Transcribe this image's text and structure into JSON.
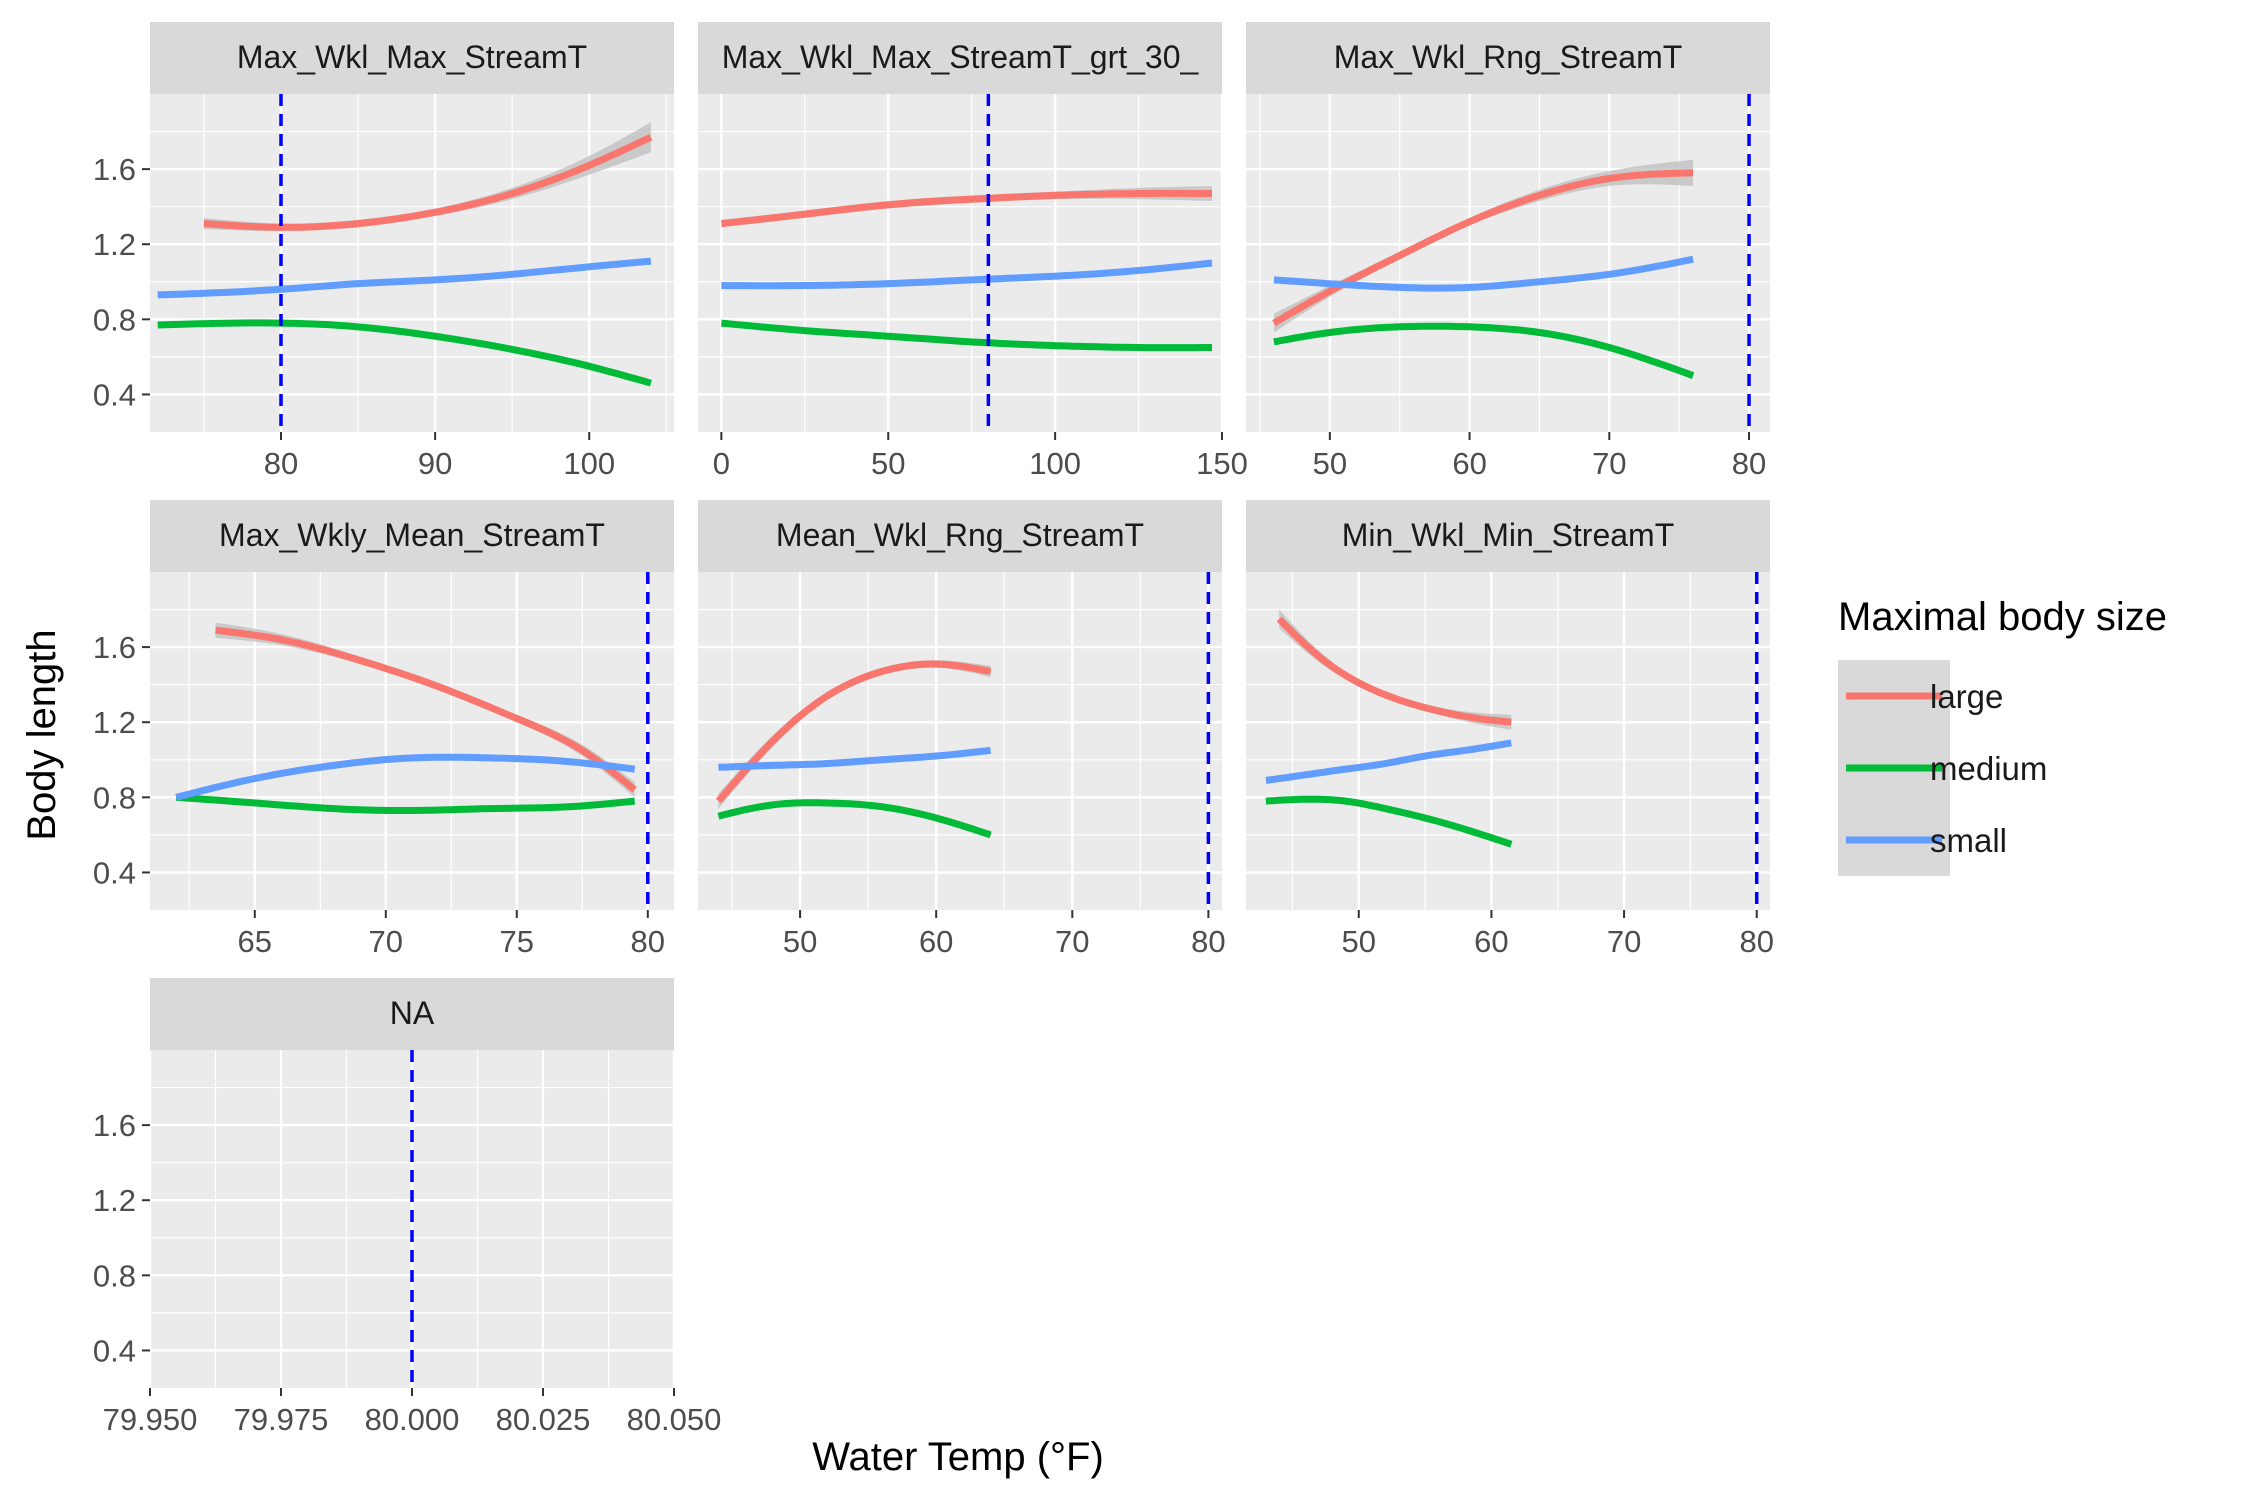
{
  "figure": {
    "xlabel": "Water Temp (°F)",
    "ylabel": "Body length"
  },
  "legend": {
    "title": "Maximal body size",
    "position": "right",
    "items": [
      {
        "label": "large",
        "color": "#F8766D"
      },
      {
        "label": "medium",
        "color": "#00BA38"
      },
      {
        "label": "small",
        "color": "#619CFF"
      }
    ]
  },
  "colors": {
    "panel_bg": "#EBEBEB",
    "strip_bg": "#D9D9D9",
    "grid": "#FFFFFF",
    "reference_line": "#0000FF",
    "ribbon": "#BDBDBD"
  },
  "chart_data": {
    "type": "line",
    "facet_layout": "3 columns x 3 rows",
    "shared_ylim": [
      0.2,
      2.0
    ],
    "y_ticks": [
      0.4,
      0.8,
      1.2,
      1.6
    ],
    "y_tick_labels": [
      "0.4",
      "0.8",
      "1.2",
      "1.6"
    ],
    "reference_line_x": 80,
    "reference_line_style": "dashed",
    "smoother_ribbon": true,
    "panels": [
      {
        "title": "Max_Wkl_Max_StreamT",
        "xlim": [
          71.5,
          105.5
        ],
        "x_ticks": [
          80,
          90,
          100
        ],
        "x_tick_labels": [
          "80",
          "90",
          "100"
        ],
        "series": [
          {
            "name": "large",
            "x": [
              75,
              80,
              85,
              90,
              95,
              100,
              104
            ],
            "y": [
              1.31,
              1.29,
              1.31,
              1.37,
              1.47,
              1.62,
              1.77
            ],
            "se": [
              0.03,
              0.02,
              0.02,
              0.02,
              0.03,
              0.05,
              0.08
            ]
          },
          {
            "name": "medium",
            "x": [
              72,
              80,
              85,
              90,
              95,
              100,
              104
            ],
            "y": [
              0.77,
              0.78,
              0.76,
              0.71,
              0.64,
              0.55,
              0.46
            ]
          },
          {
            "name": "small",
            "x": [
              72,
              80,
              85,
              90,
              95,
              100,
              104
            ],
            "y": [
              0.93,
              0.96,
              0.99,
              1.01,
              1.04,
              1.08,
              1.11
            ]
          }
        ]
      },
      {
        "title": "Max_Wkl_Max_StreamT_grt_30_",
        "xlim": [
          -7,
          150
        ],
        "x_ticks": [
          0,
          50,
          100,
          150
        ],
        "x_tick_labels": [
          "0",
          "50",
          "100",
          "150"
        ],
        "series": [
          {
            "name": "large",
            "x": [
              0,
              25,
              50,
              75,
              100,
              125,
              147
            ],
            "y": [
              1.31,
              1.36,
              1.41,
              1.44,
              1.46,
              1.47,
              1.47
            ],
            "se": [
              0.02,
              0.02,
              0.02,
              0.02,
              0.02,
              0.03,
              0.04
            ]
          },
          {
            "name": "medium",
            "x": [
              0,
              25,
              50,
              75,
              100,
              125,
              147
            ],
            "y": [
              0.78,
              0.74,
              0.71,
              0.68,
              0.66,
              0.65,
              0.65
            ]
          },
          {
            "name": "small",
            "x": [
              0,
              25,
              50,
              75,
              100,
              125,
              147
            ],
            "y": [
              0.98,
              0.98,
              0.99,
              1.01,
              1.03,
              1.06,
              1.1
            ]
          }
        ]
      },
      {
        "title": "Max_Wkl_Rng_StreamT",
        "xlim": [
          44,
          81.5
        ],
        "x_ticks": [
          50,
          60,
          70,
          80
        ],
        "x_tick_labels": [
          "50",
          "60",
          "70",
          "80"
        ],
        "series": [
          {
            "name": "large",
            "x": [
              46,
              50,
              55,
              60,
              65,
              70,
              76
            ],
            "y": [
              0.78,
              0.95,
              1.14,
              1.32,
              1.46,
              1.55,
              1.58
            ],
            "se": [
              0.05,
              0.03,
              0.02,
              0.02,
              0.03,
              0.04,
              0.07
            ]
          },
          {
            "name": "medium",
            "x": [
              46,
              50,
              55,
              60,
              65,
              70,
              76
            ],
            "y": [
              0.68,
              0.73,
              0.76,
              0.76,
              0.73,
              0.65,
              0.5
            ]
          },
          {
            "name": "small",
            "x": [
              46,
              50,
              55,
              60,
              65,
              70,
              76
            ],
            "y": [
              1.01,
              0.99,
              0.97,
              0.97,
              1.0,
              1.04,
              1.12
            ]
          }
        ]
      },
      {
        "title": "Max_Wkly_Mean_StreamT",
        "xlim": [
          61,
          81
        ],
        "x_ticks": [
          65,
          70,
          75,
          80
        ],
        "x_tick_labels": [
          "65",
          "70",
          "75",
          "80"
        ],
        "series": [
          {
            "name": "large",
            "x": [
              63.5,
              66,
              69,
              72,
              75,
              77.5,
              79.5
            ],
            "y": [
              1.69,
              1.64,
              1.53,
              1.39,
              1.22,
              1.05,
              0.84
            ],
            "se": [
              0.04,
              0.03,
              0.02,
              0.02,
              0.02,
              0.03,
              0.04
            ]
          },
          {
            "name": "medium",
            "x": [
              62,
              65,
              68,
              71,
              74,
              77,
              79.5
            ],
            "y": [
              0.8,
              0.77,
              0.74,
              0.73,
              0.74,
              0.75,
              0.78
            ]
          },
          {
            "name": "small",
            "x": [
              62,
              65,
              68,
              71,
              74,
              77,
              79.5
            ],
            "y": [
              0.8,
              0.9,
              0.97,
              1.01,
              1.01,
              0.99,
              0.95
            ]
          }
        ]
      },
      {
        "title": "Mean_Wkl_Rng_StreamT",
        "xlim": [
          42.5,
          81
        ],
        "x_ticks": [
          50,
          60,
          70,
          80
        ],
        "x_tick_labels": [
          "50",
          "60",
          "70",
          "80"
        ],
        "series": [
          {
            "name": "large",
            "x": [
              44,
              48,
              52,
              56,
              60,
              64
            ],
            "y": [
              0.78,
              1.1,
              1.34,
              1.47,
              1.51,
              1.47
            ],
            "se": [
              0.04,
              0.03,
              0.02,
              0.02,
              0.02,
              0.03
            ]
          },
          {
            "name": "medium",
            "x": [
              44,
              48,
              52,
              56,
              60,
              64
            ],
            "y": [
              0.7,
              0.76,
              0.77,
              0.75,
              0.69,
              0.6
            ]
          },
          {
            "name": "small",
            "x": [
              44,
              48,
              52,
              56,
              60,
              64
            ],
            "y": [
              0.96,
              0.97,
              0.98,
              1.0,
              1.02,
              1.05
            ]
          }
        ]
      },
      {
        "title": "Min_Wkl_Min_StreamT",
        "xlim": [
          41.5,
          81
        ],
        "x_ticks": [
          50,
          60,
          70,
          80
        ],
        "x_tick_labels": [
          "50",
          "60",
          "70",
          "80"
        ],
        "series": [
          {
            "name": "large",
            "x": [
              44,
              47,
              50,
              53,
              56,
              59,
              61.5
            ],
            "y": [
              1.75,
              1.55,
              1.41,
              1.32,
              1.26,
              1.22,
              1.2
            ],
            "se": [
              0.05,
              0.03,
              0.02,
              0.02,
              0.02,
              0.03,
              0.04
            ]
          },
          {
            "name": "medium",
            "x": [
              43,
              46,
              49,
              52,
              55,
              58,
              61.5
            ],
            "y": [
              0.78,
              0.79,
              0.78,
              0.74,
              0.69,
              0.63,
              0.55
            ]
          },
          {
            "name": "small",
            "x": [
              43,
              46,
              49,
              52,
              55,
              58,
              61.5
            ],
            "y": [
              0.89,
              0.92,
              0.95,
              0.98,
              1.02,
              1.05,
              1.09
            ]
          }
        ]
      },
      {
        "title": "NA",
        "xlim": [
          79.95,
          80.05
        ],
        "x_ticks": [
          79.95,
          79.975,
          80.0,
          80.025,
          80.05
        ],
        "x_tick_labels": [
          "79.950",
          "79.975",
          "80.000",
          "80.025",
          "80.050"
        ],
        "series": []
      }
    ]
  }
}
